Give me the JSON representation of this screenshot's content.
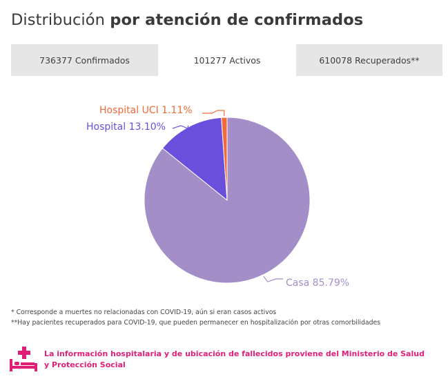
{
  "header": {
    "title_light": "Distribución",
    "title_bold": "por atención de confirmados"
  },
  "tabs": [
    {
      "label": "736377 Confirmados",
      "active": false
    },
    {
      "label": "101277 Activos",
      "active": true
    },
    {
      "label": "610078 Recuperados**",
      "active": false
    }
  ],
  "chart_data": {
    "type": "pie",
    "slices": [
      {
        "label": "Casa 85.79%",
        "name": "Casa",
        "value": 85.79,
        "color": "#a48ec8"
      },
      {
        "label": "Hospital 13.10%",
        "name": "Hospital",
        "value": 13.1,
        "color": "#6a4fdc"
      },
      {
        "label": "Hospital UCI 1.11%",
        "name": "Hospital UCI",
        "value": 1.11,
        "color": "#f26b3a"
      }
    ]
  },
  "footnotes": {
    "note1": "* Corresponde a muertes no relacionadas con COVID-19, aún si eran casos activos",
    "note2": "**Hay pacientes recuperados para COVID-19, que pueden permanecer en hospitalización por otras comorbilidades"
  },
  "info": {
    "icon": "hospital-bed-icon",
    "text": "La información hospitalaria y de ubicación de fallecidos proviene del Ministerio de Salud y Protección Social",
    "color": "#e01e78"
  }
}
